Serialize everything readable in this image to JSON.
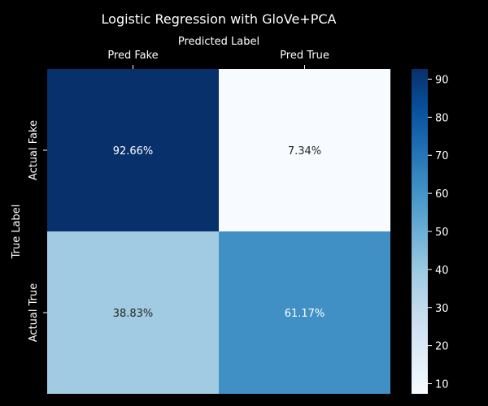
{
  "chart_data": {
    "type": "heatmap",
    "title": "Logistic Regression with GloVe+PCA",
    "xlabel": "Predicted Label",
    "ylabel": "True Label",
    "x_categories": [
      "Pred Fake",
      "Pred True"
    ],
    "y_categories": [
      "Actual Fake",
      "Actual True"
    ],
    "values": [
      [
        92.66,
        7.34
      ],
      [
        38.83,
        61.17
      ]
    ],
    "cell_labels": [
      [
        "92.66%",
        "7.34%"
      ],
      [
        "38.83%",
        "61.17%"
      ]
    ],
    "colorbar": {
      "range": [
        7.34,
        92.66
      ],
      "ticks": [
        10,
        20,
        30,
        40,
        50,
        60,
        70,
        80,
        90
      ],
      "tick_labels": [
        "10",
        "20",
        "30",
        "40",
        "50",
        "60",
        "70",
        "80",
        "90"
      ],
      "colormap": "Blues"
    },
    "x_axis_position": "top",
    "grid": false
  }
}
